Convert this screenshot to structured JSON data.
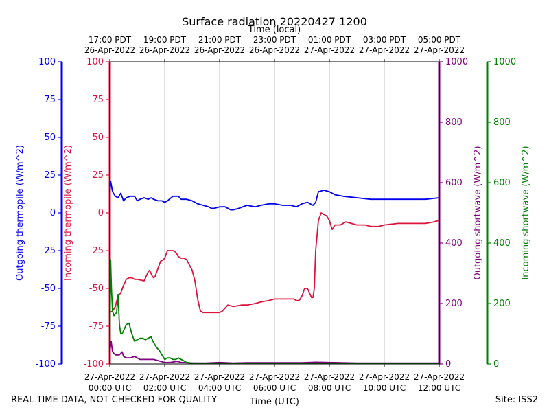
{
  "chart_data": {
    "type": "line",
    "title": "Surface radiation 20220427 1200",
    "top_axis_label": "Time (local)",
    "xlabel": "Time (UTC)",
    "x_range_hours": [
      0,
      12
    ],
    "top_ticks": [
      {
        "h": 0,
        "line1": "17:00 PDT",
        "line2": "26-Apr-2022"
      },
      {
        "h": 2,
        "line1": "19:00 PDT",
        "line2": "26-Apr-2022"
      },
      {
        "h": 4,
        "line1": "21:00 PDT",
        "line2": "26-Apr-2022"
      },
      {
        "h": 6,
        "line1": "23:00 PDT",
        "line2": "26-Apr-2022"
      },
      {
        "h": 8,
        "line1": "01:00 PDT",
        "line2": "27-Apr-2022"
      },
      {
        "h": 10,
        "line1": "03:00 PDT",
        "line2": "27-Apr-2022"
      },
      {
        "h": 12,
        "line1": "05:00 PDT",
        "line2": "27-Apr-2022"
      }
    ],
    "bottom_ticks": [
      {
        "h": 0,
        "line1": "27-Apr-2022",
        "line2": "00:00 UTC"
      },
      {
        "h": 2,
        "line1": "27-Apr-2022",
        "line2": "02:00 UTC"
      },
      {
        "h": 4,
        "line1": "27-Apr-2022",
        "line2": "04:00 UTC"
      },
      {
        "h": 6,
        "line1": "27-Apr-2022",
        "line2": "06:00 UTC"
      },
      {
        "h": 8,
        "line1": "27-Apr-2022",
        "line2": "08:00 UTC"
      },
      {
        "h": 10,
        "line1": "27-Apr-2022",
        "line2": "10:00 UTC"
      },
      {
        "h": 12,
        "line1": "27-Apr-2022",
        "line2": "12:00 UTC"
      }
    ],
    "axes": {
      "outgoing_thermopile": {
        "label": "Outgoing thermopile (W/m^2)",
        "color": "#0000ee",
        "ylim": [
          -100,
          100
        ],
        "ticks": [
          100,
          75,
          50,
          25,
          0,
          -25,
          -50,
          -75,
          -100
        ]
      },
      "incoming_thermopile": {
        "label": "Incoming thermopile (W/m^2)",
        "color": "#dc143c",
        "ylim": [
          -100,
          100
        ],
        "ticks": [
          100,
          75,
          50,
          25,
          0,
          -25,
          -50,
          -75,
          -100
        ]
      },
      "outgoing_shortwave": {
        "label": "Outgoing shortwave (W/m^2)",
        "color": "#800080",
        "ylim": [
          0,
          1000
        ],
        "ticks": [
          1000,
          800,
          600,
          400,
          200,
          0
        ]
      },
      "incoming_shortwave": {
        "label": "Incoming shortwave (W/m^2)",
        "color": "#008000",
        "ylim": [
          0,
          1000
        ],
        "ticks": [
          1000,
          800,
          600,
          400,
          200,
          0
        ]
      }
    },
    "series": [
      {
        "name": "Outgoing thermopile",
        "axis": "outgoing_thermopile",
        "color": "#0000ee",
        "x": [
          0,
          0.03,
          0.1,
          0.2,
          0.3,
          0.4,
          0.5,
          0.6,
          0.75,
          0.9,
          1.0,
          1.1,
          1.25,
          1.4,
          1.5,
          1.6,
          1.75,
          1.9,
          2.0,
          2.1,
          2.3,
          2.5,
          2.6,
          2.8,
          3.0,
          3.2,
          3.4,
          3.6,
          3.7,
          3.8,
          4.0,
          4.2,
          4.4,
          4.5,
          4.7,
          5.0,
          5.3,
          5.5,
          5.8,
          6.0,
          6.3,
          6.6,
          6.8,
          7.0,
          7.2,
          7.4,
          7.5,
          7.6,
          7.8,
          8.0,
          8.2,
          8.5,
          9.0,
          9.5,
          10.0,
          10.5,
          11.0,
          11.5,
          12.0
        ],
        "y": [
          14,
          21,
          14,
          11,
          10,
          13,
          8,
          10,
          11,
          11,
          8,
          9,
          10,
          9,
          10,
          9,
          8,
          8,
          7,
          8,
          11,
          11,
          9,
          9,
          8,
          6,
          5,
          4,
          3,
          3,
          4,
          4,
          2,
          2,
          3,
          5,
          4,
          5,
          6,
          6,
          5,
          5,
          4,
          6,
          7,
          5,
          7,
          14,
          15,
          14,
          12,
          11,
          10,
          9,
          9,
          9,
          9,
          9,
          10
        ]
      },
      {
        "name": "Incoming thermopile",
        "axis": "incoming_thermopile",
        "color": "#dc143c",
        "x": [
          0,
          0.1,
          0.2,
          0.3,
          0.4,
          0.5,
          0.6,
          0.7,
          0.8,
          0.9,
          1.0,
          1.25,
          1.4,
          1.45,
          1.55,
          1.6,
          1.65,
          1.75,
          1.85,
          1.95,
          2.0,
          2.1,
          2.2,
          2.3,
          2.4,
          2.5,
          2.6,
          2.7,
          2.8,
          3.0,
          3.1,
          3.2,
          3.3,
          3.4,
          3.5,
          3.7,
          3.8,
          4.0,
          4.1,
          4.2,
          4.3,
          4.5,
          4.8,
          5.0,
          5.3,
          5.5,
          5.8,
          6.0,
          6.3,
          6.5,
          6.7,
          6.8,
          6.9,
          7.0,
          7.1,
          7.2,
          7.3,
          7.35,
          7.4,
          7.45,
          7.5,
          7.6,
          7.7,
          7.8,
          7.9,
          8.0,
          8.1,
          8.2,
          8.4,
          8.6,
          8.8,
          9.0,
          9.3,
          9.5,
          9.8,
          10.0,
          10.5,
          11.0,
          11.5,
          11.8,
          12.0
        ],
        "y": [
          -66,
          -65,
          -62,
          -55,
          -53,
          -48,
          -44,
          -43,
          -43,
          -44,
          -44,
          -45,
          -39,
          -38,
          -42,
          -43,
          -42,
          -37,
          -32,
          -31,
          -30,
          -25,
          -25,
          -25,
          -26,
          -29,
          -30,
          -30,
          -31,
          -38,
          -45,
          -57,
          -65,
          -66,
          -66,
          -66,
          -66,
          -66,
          -65,
          -63,
          -61,
          -62,
          -61,
          -61,
          -60,
          -59,
          -58,
          -57,
          -57,
          -57,
          -57,
          -58,
          -58,
          -55,
          -50,
          -50,
          -54,
          -56,
          -56,
          -50,
          -25,
          -5,
          0,
          -1,
          -2,
          -5,
          -11,
          -8,
          -8,
          -6,
          -7,
          -8,
          -8,
          -9,
          -9,
          -8,
          -7,
          -7,
          -7,
          -6,
          -5
        ]
      },
      {
        "name": "Outgoing shortwave",
        "axis": "outgoing_shortwave",
        "color": "#800080",
        "x": [
          0,
          0.05,
          0.1,
          0.2,
          0.35,
          0.45,
          0.5,
          0.6,
          0.75,
          0.9,
          1.0,
          1.1,
          1.3,
          1.5,
          1.6,
          1.8,
          2.0,
          2.2,
          2.4,
          2.5,
          2.6,
          2.8,
          3.0,
          3.5,
          4.0,
          4.5,
          5.0,
          6.0,
          7.0,
          7.5,
          8.0,
          9.0,
          10.0,
          11.0,
          12.0
        ],
        "y": [
          40,
          75,
          40,
          30,
          30,
          40,
          25,
          20,
          20,
          25,
          20,
          15,
          15,
          15,
          15,
          10,
          5,
          5,
          8,
          8,
          5,
          4,
          3,
          3,
          5,
          3,
          4,
          4,
          4,
          6,
          5,
          3,
          3,
          3,
          3
        ]
      },
      {
        "name": "Incoming shortwave",
        "axis": "incoming_shortwave",
        "color": "#008000",
        "x": [
          0,
          0.03,
          0.06,
          0.1,
          0.15,
          0.2,
          0.25,
          0.3,
          0.35,
          0.4,
          0.45,
          0.5,
          0.6,
          0.7,
          0.8,
          0.9,
          1.0,
          1.1,
          1.2,
          1.3,
          1.4,
          1.5,
          1.6,
          1.7,
          1.8,
          1.9,
          2.0,
          2.1,
          2.2,
          2.3,
          2.4,
          2.5,
          2.6,
          2.7,
          2.8,
          3.0,
          3.5,
          4.0,
          5.0,
          6.0,
          7.0,
          8.0,
          9.0,
          10.0,
          11.0,
          12.0
        ],
        "y": [
          30,
          345,
          250,
          175,
          160,
          165,
          170,
          230,
          130,
          100,
          100,
          110,
          130,
          135,
          100,
          75,
          80,
          85,
          85,
          80,
          85,
          90,
          70,
          55,
          45,
          30,
          15,
          20,
          20,
          15,
          15,
          20,
          15,
          10,
          5,
          3,
          2,
          2,
          2,
          2,
          2,
          2,
          2,
          2,
          2,
          2
        ]
      }
    ]
  },
  "footer": {
    "note": "REAL TIME DATA, NOT CHECKED FOR QUALITY",
    "site": "Site: ISS2"
  }
}
